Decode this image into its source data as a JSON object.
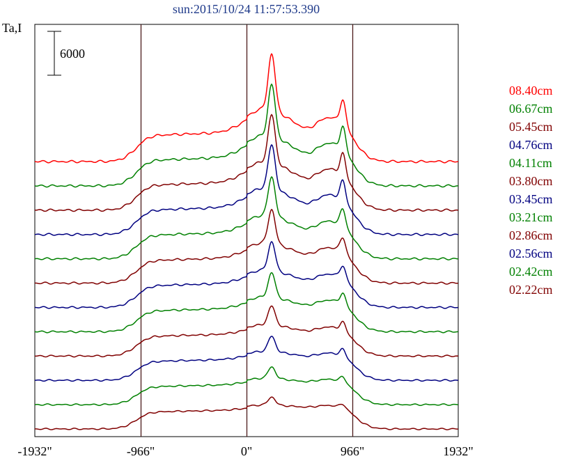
{
  "title": "sun:2015/10/24 11:57:53.390",
  "chart_data": {
    "type": "line",
    "ylabel": "Ta,I",
    "scale_bar_label": "6000",
    "scale_bar_value": 6000,
    "xlim": [
      -1932,
      1932
    ],
    "xticks": [
      {
        "value": -1932,
        "label": "-1932\""
      },
      {
        "value": -966,
        "label": "-966\""
      },
      {
        "value": 0,
        "label": "0\""
      },
      {
        "value": 966,
        "label": "966\""
      },
      {
        "value": 1932,
        "label": "1932\""
      }
    ],
    "vertical_lines": [
      -966,
      0,
      966
    ],
    "grid": false,
    "legend_position": "right",
    "series": [
      {
        "name": "08.40cm",
        "color": "#ff0000",
        "peak": 1.0
      },
      {
        "name": "06.67cm",
        "color": "#008000",
        "peak": 0.95
      },
      {
        "name": "05.45cm",
        "color": "#800000",
        "peak": 0.9
      },
      {
        "name": "04.76cm",
        "color": "#000080",
        "peak": 0.85
      },
      {
        "name": "04.11cm",
        "color": "#008000",
        "peak": 0.78
      },
      {
        "name": "03.80cm",
        "color": "#800000",
        "peak": 0.7
      },
      {
        "name": "03.45cm",
        "color": "#000080",
        "peak": 0.62
      },
      {
        "name": "03.21cm",
        "color": "#008000",
        "peak": 0.55
      },
      {
        "name": "02.86cm",
        "color": "#800000",
        "peak": 0.45
      },
      {
        "name": "02.56cm",
        "color": "#000080",
        "peak": 0.38
      },
      {
        "name": "02.42cm",
        "color": "#008000",
        "peak": 0.3
      },
      {
        "name": "02.22cm",
        "color": "#800000",
        "peak": 0.22
      }
    ]
  }
}
